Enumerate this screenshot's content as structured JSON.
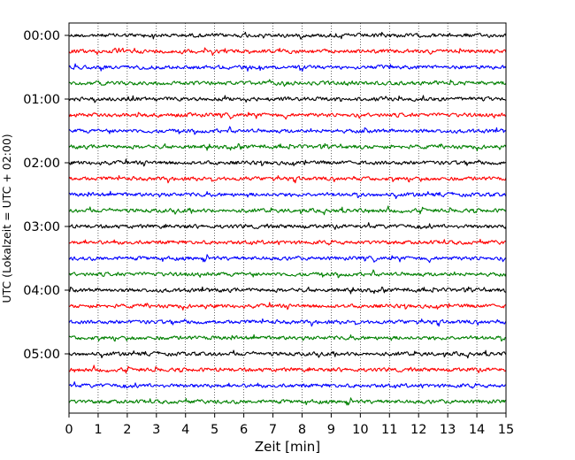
{
  "chart_data": {
    "type": "line",
    "title": "",
    "xlabel": "Zeit  [min]",
    "ylabel": "UTC (Lokalzeit = UTC + 02:00)",
    "xlim": [
      0,
      15
    ],
    "x_ticks": [
      "0",
      "1",
      "2",
      "3",
      "4",
      "5",
      "6",
      "7",
      "8",
      "9",
      "10",
      "11",
      "12",
      "13",
      "14",
      "15"
    ],
    "y_ticks": [
      {
        "label": "00:00",
        "trace": 0
      },
      {
        "label": "01:00",
        "trace": 4
      },
      {
        "label": "02:00",
        "trace": 8
      },
      {
        "label": "03:00",
        "trace": 12
      },
      {
        "label": "04:00",
        "trace": 16
      },
      {
        "label": "05:00",
        "trace": 20
      }
    ],
    "grid": "vertical-dotted",
    "traces": 24,
    "trace_minutes": 15,
    "colors": [
      "#000000",
      "#ff0000",
      "#0000ff",
      "#008000"
    ]
  }
}
